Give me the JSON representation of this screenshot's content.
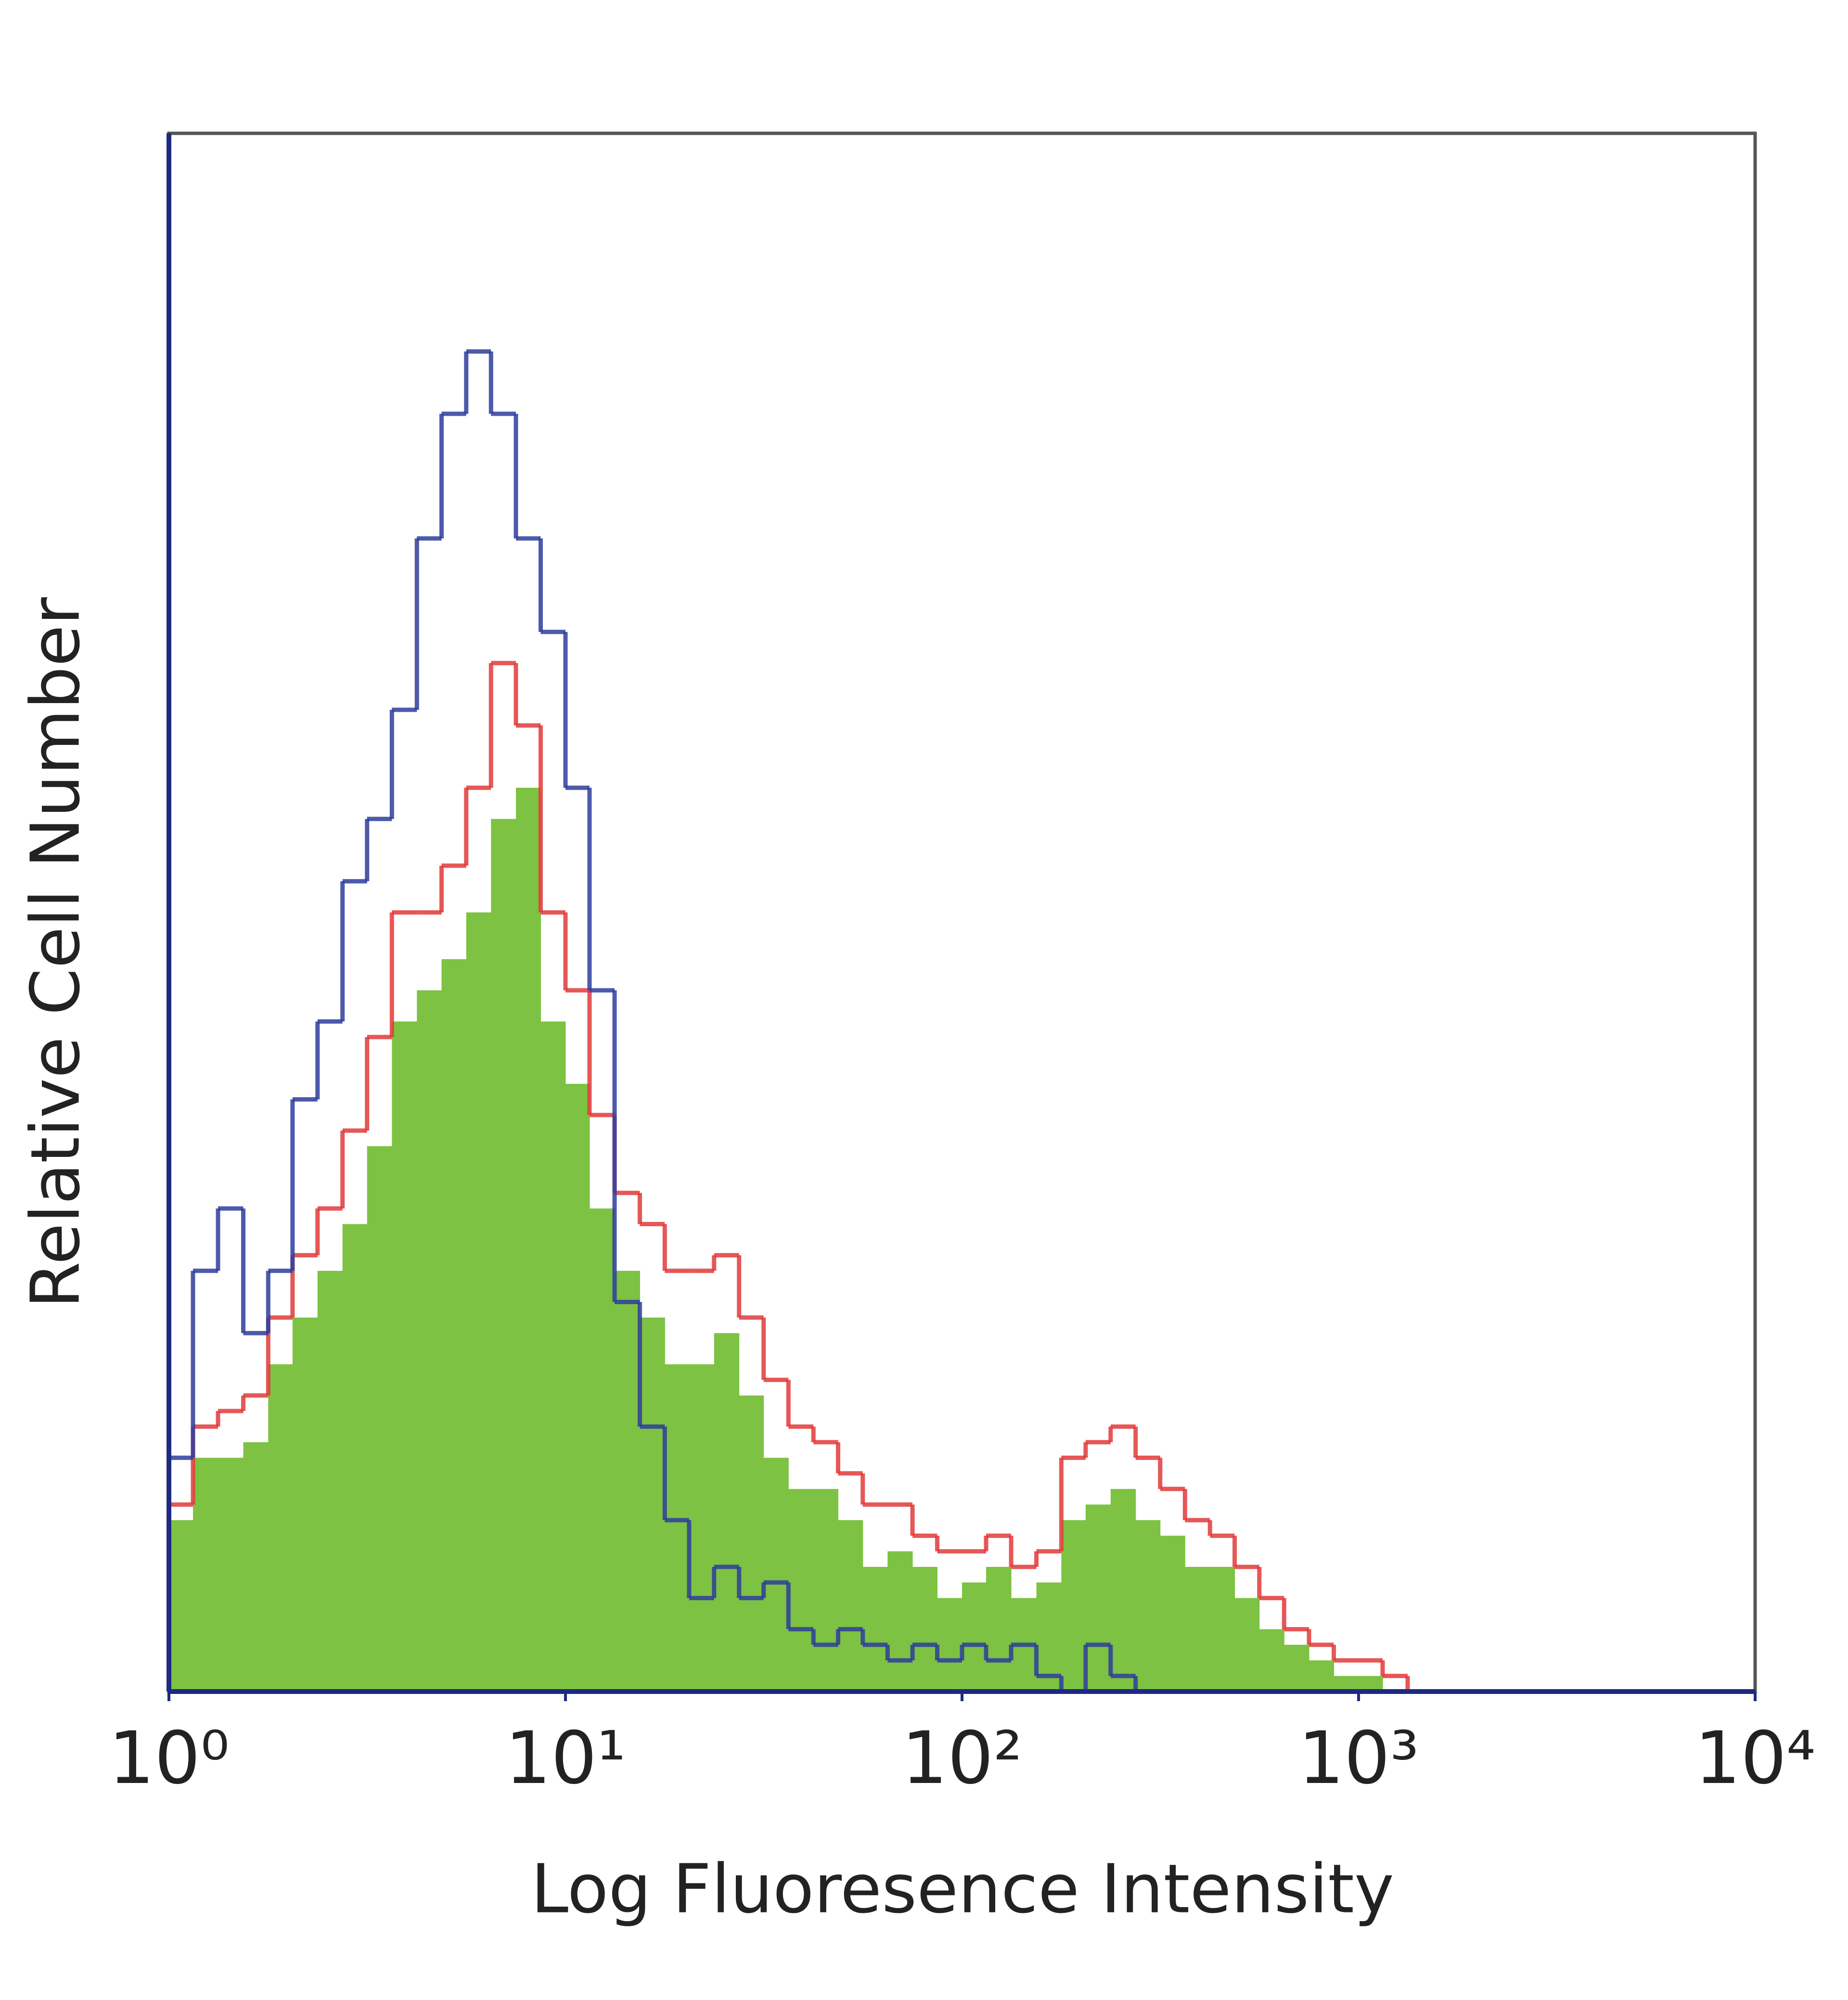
{
  "chart_data": {
    "type": "histogram",
    "x_label": "Log Fluoresence Intensity",
    "y_label": "Relative Cell Number",
    "xscale": "log",
    "xlim": [
      1,
      10000
    ],
    "xticks": [
      {
        "value": 1,
        "label": "10⁰"
      },
      {
        "value": 10,
        "label": "10¹"
      },
      {
        "value": 100,
        "label": "10²"
      },
      {
        "value": 1000,
        "label": "10³"
      },
      {
        "value": 10000,
        "label": "10⁴"
      }
    ],
    "ylim": [
      0,
      100
    ],
    "bins": [
      1,
      1.15,
      1.33,
      1.54,
      1.78,
      2.05,
      2.37,
      2.74,
      3.16,
      3.65,
      4.22,
      4.87,
      5.62,
      6.49,
      7.5,
      8.66,
      10,
      11.5,
      13.3,
      15.4,
      17.8,
      20.5,
      23.7,
      27.4,
      31.6,
      36.5,
      42.2,
      48.7,
      56.2,
      64.9,
      75,
      86.6,
      100,
      115,
      133,
      154,
      178,
      205,
      237,
      274,
      316,
      365,
      422,
      487,
      562,
      649,
      750,
      866,
      1000,
      1150,
      1330,
      1540
    ],
    "series": [
      {
        "style": "filled",
        "color": "#7dc242",
        "values": [
          11,
          15,
          15,
          16,
          21,
          24,
          27,
          30,
          35,
          43,
          45,
          47,
          50,
          56,
          58,
          43,
          39,
          31,
          27,
          24,
          21,
          21,
          23,
          19,
          15,
          13,
          13,
          11,
          8,
          9,
          8,
          6,
          7,
          8,
          6,
          7,
          11,
          12,
          13,
          11,
          10,
          8,
          8,
          6,
          4,
          3,
          2,
          1,
          1,
          0,
          0
        ]
      },
      {
        "style": "outline",
        "color": "#e23a3a",
        "values": [
          12,
          17,
          18,
          19,
          24,
          28,
          31,
          36,
          42,
          50,
          50,
          53,
          58,
          66,
          62,
          50,
          45,
          37,
          32,
          30,
          27,
          27,
          28,
          24,
          20,
          17,
          16,
          14,
          12,
          12,
          10,
          9,
          9,
          10,
          8,
          9,
          15,
          16,
          17,
          15,
          13,
          11,
          10,
          8,
          6,
          4,
          3,
          2,
          2,
          1,
          0
        ]
      },
      {
        "style": "outline",
        "color": "#2e3d9c",
        "values": [
          15,
          27,
          31,
          23,
          27,
          38,
          43,
          52,
          56,
          63,
          74,
          82,
          86,
          82,
          74,
          68,
          58,
          45,
          25,
          17,
          11,
          6,
          8,
          6,
          7,
          4,
          3,
          4,
          3,
          2,
          3,
          2,
          3,
          2,
          3,
          1,
          0,
          3,
          1,
          0,
          0,
          0,
          0,
          0,
          0,
          0,
          0,
          0,
          0,
          0,
          0
        ]
      }
    ]
  }
}
